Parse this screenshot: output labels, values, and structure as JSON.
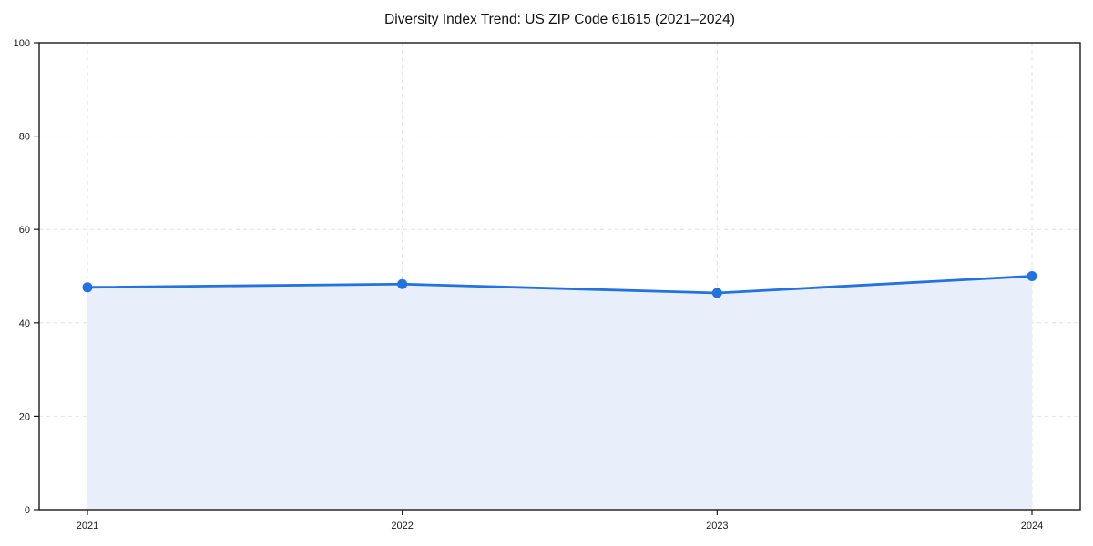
{
  "page": {
    "background": "#ffffff"
  },
  "chart_data": {
    "type": "area",
    "title": "Diversity Index Trend: US ZIP Code 61615 (2021–2024)",
    "x": [
      "2021",
      "2022",
      "2023",
      "2024"
    ],
    "series": [
      {
        "name": "Diversity Index",
        "values": [
          47.6,
          48.3,
          46.4,
          50.0
        ]
      }
    ],
    "xlabel": "",
    "ylabel": "",
    "ylim": [
      0,
      100
    ],
    "yticks": [
      0,
      20,
      40,
      60,
      80,
      100
    ],
    "grid": true,
    "grid_style": "dashed",
    "legend": "none",
    "marker": "circle",
    "colors": {
      "line": "#2272df",
      "marker": "#2272df",
      "fill": "#e8effb",
      "grid": "#e2e2e2",
      "axis": "#1a1a1a",
      "tick_label": "#1a1a1a",
      "title": "#111111"
    }
  }
}
